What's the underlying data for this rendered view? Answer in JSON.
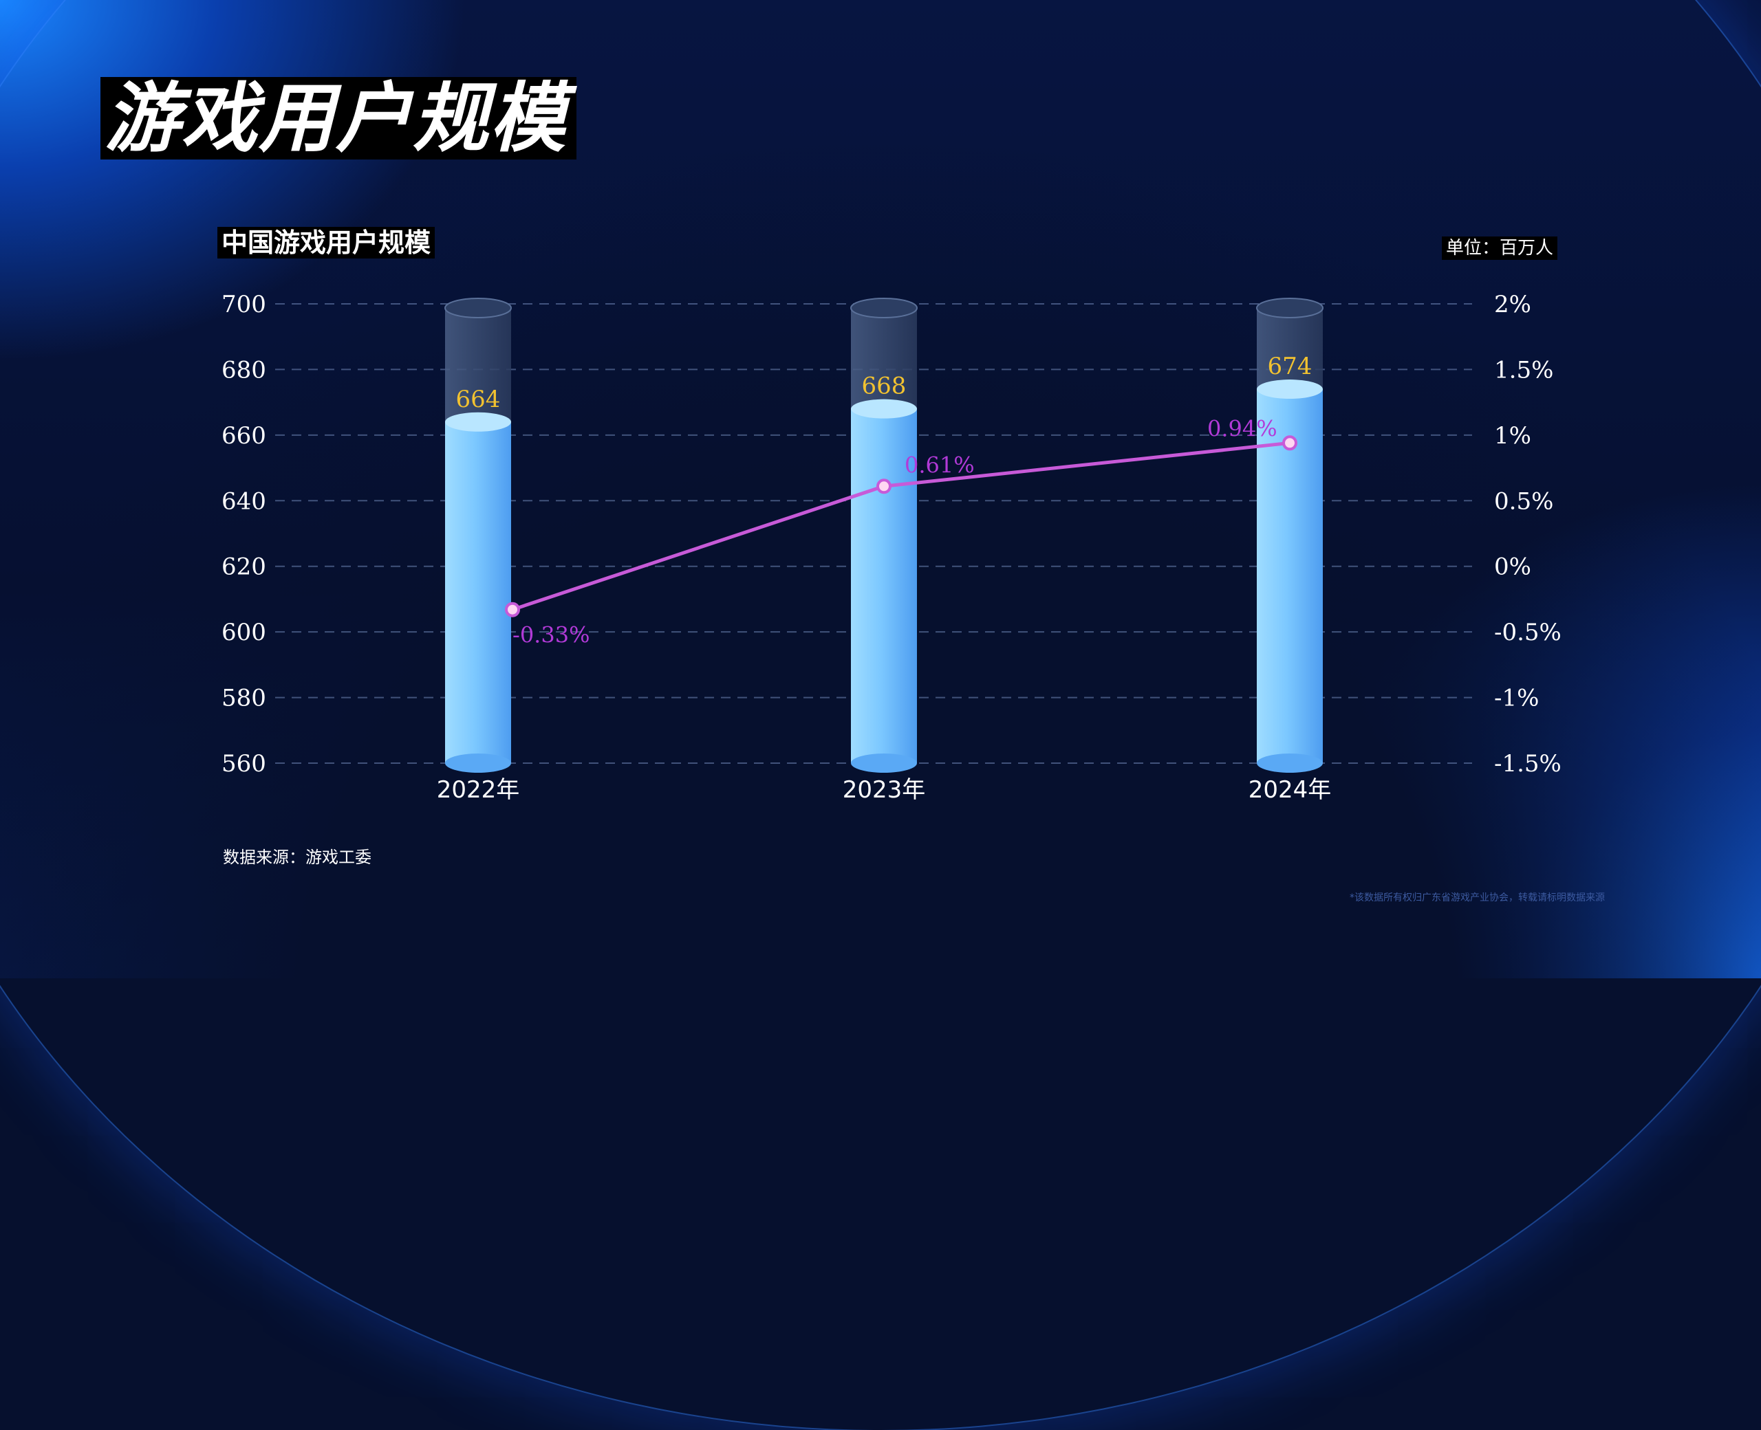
{
  "page": {
    "title": "游戏用户规模",
    "chart_title": "中国游戏用户规模",
    "unit": "单位：百万人",
    "source": "数据来源：游戏工委",
    "copyright": "*该数据所有权归广东省游戏产业协会，转载请标明数据来源"
  },
  "colors": {
    "bar": "#7cc8ff",
    "line": "#c75ad8",
    "value_label": "#f2c230",
    "percent_label": "#b23ad8",
    "background": "#06102e"
  },
  "chart_data": {
    "type": "bar",
    "categories": [
      "2022年",
      "2023年",
      "2024年"
    ],
    "series": [
      {
        "values": [
          664,
          668,
          674
        ],
        "axis": "left",
        "type": "bar"
      },
      {
        "values": [
          -0.33,
          0.61,
          0.94
        ],
        "axis": "right",
        "type": "line",
        "labels": [
          "-0.33%",
          "0.61%",
          "0.94%"
        ]
      }
    ],
    "ylim": [
      560,
      700
    ],
    "y_ticks": [
      "700",
      "680",
      "660",
      "640",
      "620",
      "600",
      "580",
      "560"
    ],
    "y2lim": [
      -1.5,
      2
    ],
    "y2_ticks": [
      "2%",
      "1.5%",
      "1%",
      "0.5%",
      "0%",
      "-0.5%",
      "-1%",
      "-1.5%"
    ],
    "grid": true
  }
}
